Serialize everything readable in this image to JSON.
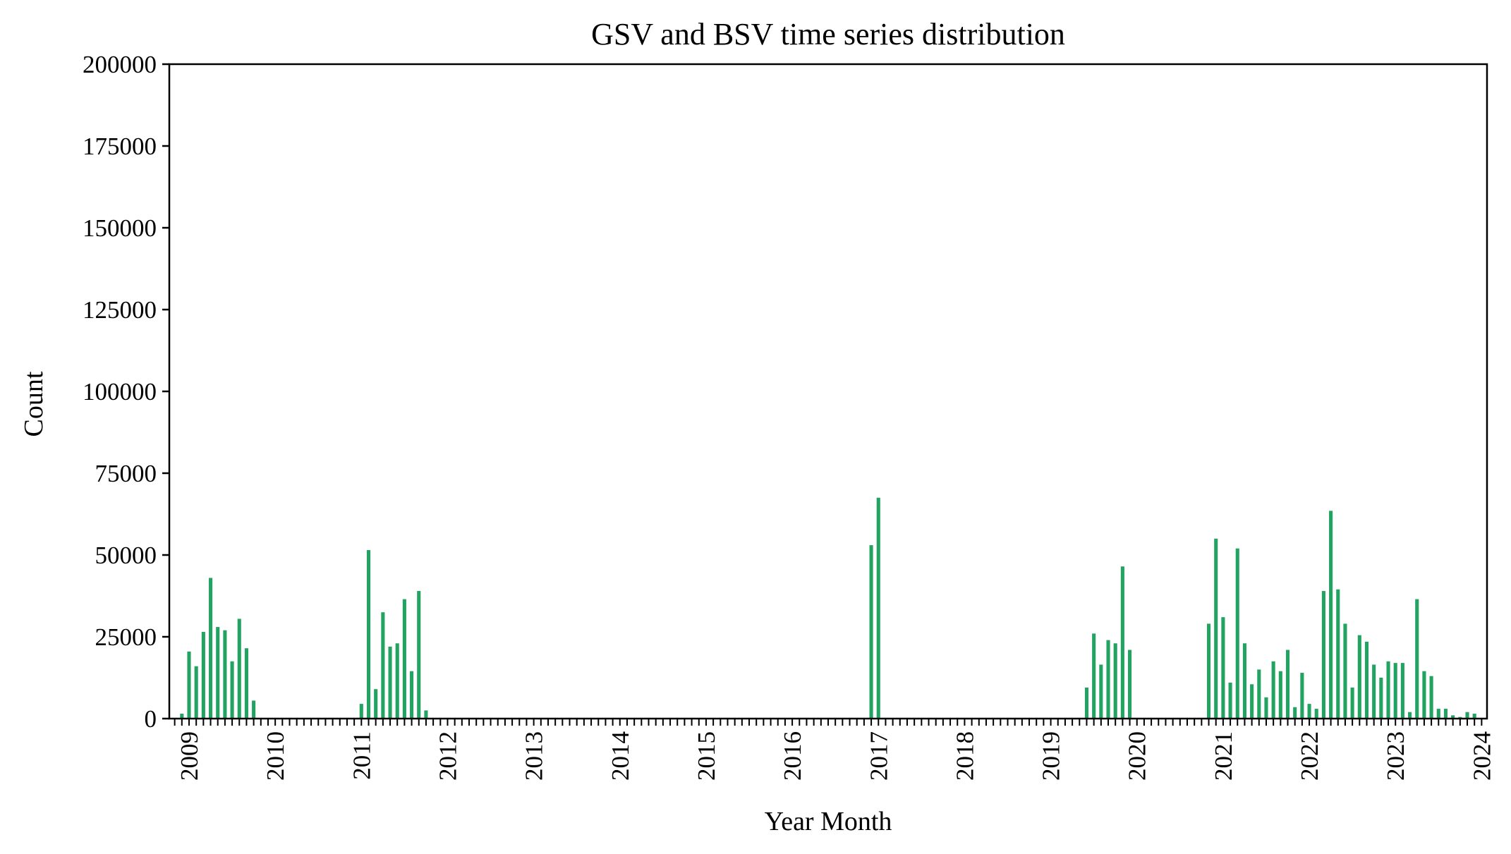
{
  "chart_data": {
    "type": "bar",
    "title": "GSV and BSV time series distribution",
    "xlabel": "Year Month",
    "ylabel": "Count",
    "ylim": [
      0,
      200000
    ],
    "yticks": [
      0,
      25000,
      50000,
      75000,
      100000,
      125000,
      150000,
      175000,
      200000
    ],
    "xticklabels": [
      "2009",
      "2010",
      "2011",
      "2012",
      "2013",
      "2014",
      "2015",
      "2016",
      "2017",
      "2018",
      "2019",
      "2020",
      "2021",
      "2022",
      "2023",
      "2024"
    ],
    "x_start": "2008-11",
    "bar_color": "#23a361",
    "grid": false,
    "legend": "none",
    "series": [
      {
        "values": [
          0,
          1500,
          20500,
          16000,
          26500,
          43000,
          28000,
          27000,
          17500,
          30500,
          21500,
          5500,
          0,
          0,
          0,
          0,
          0,
          0,
          0,
          0,
          0,
          0,
          0,
          0,
          0,
          0,
          4500,
          51500,
          9000,
          32500,
          22000,
          23000,
          36500,
          14500,
          39000,
          2500,
          0,
          0,
          0,
          0,
          0,
          0,
          0,
          0,
          0,
          0,
          0,
          0,
          0,
          0,
          0,
          0,
          0,
          0,
          0,
          0,
          0,
          0,
          0,
          0,
          0,
          0,
          0,
          0,
          0,
          0,
          0,
          0,
          0,
          0,
          0,
          0,
          0,
          0,
          0,
          0,
          0,
          0,
          0,
          0,
          0,
          0,
          0,
          0,
          0,
          0,
          0,
          0,
          0,
          0,
          0,
          0,
          0,
          0,
          0,
          0,
          0,
          53000,
          67500,
          0,
          0,
          0,
          0,
          0,
          0,
          0,
          0,
          0,
          0,
          0,
          0,
          0,
          0,
          0,
          0,
          0,
          0,
          0,
          0,
          0,
          0,
          0,
          0,
          0,
          0,
          0,
          0,
          9500,
          26000,
          16500,
          24000,
          23000,
          46500,
          21000,
          0,
          0,
          0,
          0,
          0,
          0,
          0,
          0,
          0,
          0,
          29000,
          55000,
          31000,
          11000,
          52000,
          23000,
          10500,
          15000,
          6500,
          17500,
          14500,
          21000,
          3500,
          14000,
          4500,
          3000,
          39000,
          63500,
          39500,
          29000,
          9500,
          25500,
          23500,
          16500,
          12500,
          17500,
          17000,
          17000,
          2000,
          36500,
          14500,
          13000,
          3000,
          3000,
          1000,
          500,
          2000,
          1500,
          0
        ]
      }
    ]
  }
}
